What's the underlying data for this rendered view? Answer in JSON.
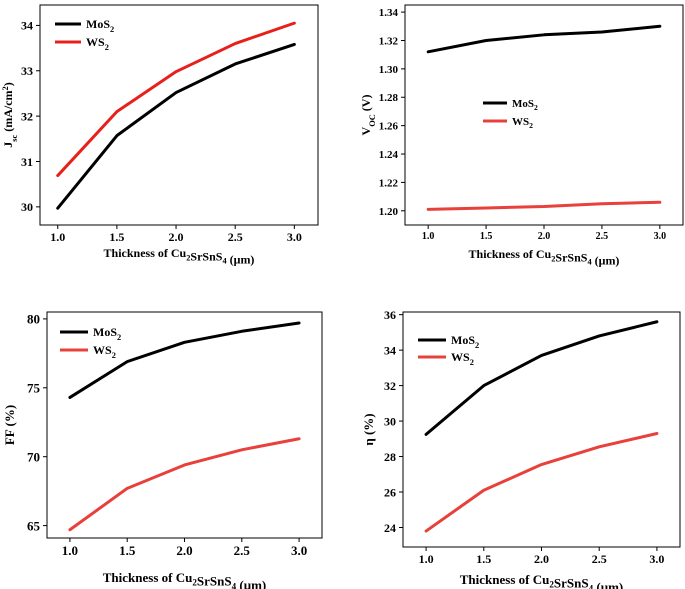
{
  "chart_data": [
    {
      "type": "line",
      "id": "jsc",
      "title": "",
      "x": [
        1.0,
        1.5,
        2.0,
        2.5,
        3.0
      ],
      "x_tick_labels": [
        "1.0",
        "1.5",
        "2.0",
        "2.5",
        "3.0"
      ],
      "xlim": [
        0.85,
        3.2
      ],
      "xlabel": "Thickness of Cu₂SrSnS₄ (μm)",
      "ylabel": "Jₛᴄ (mA/cm²)",
      "ylim": [
        29.6,
        34.45
      ],
      "yticks": [
        30,
        31,
        32,
        33,
        34
      ],
      "y_tick_labels": [
        "30",
        "31",
        "32",
        "33",
        "34"
      ],
      "series": [
        {
          "name": "MoS₂",
          "color": "#000000",
          "values": [
            29.97,
            31.57,
            32.52,
            33.15,
            33.58
          ]
        },
        {
          "name": "WS₂",
          "color": "#e8201b",
          "values": [
            30.69,
            32.1,
            32.98,
            33.6,
            34.05
          ]
        }
      ],
      "legend": "top-left",
      "grid": false
    },
    {
      "type": "line",
      "id": "voc",
      "title": "",
      "x": [
        1.0,
        1.5,
        2.0,
        2.5,
        3.0
      ],
      "x_tick_labels": [
        "1.0",
        "1.5",
        "2.0",
        "2.5",
        "3.0"
      ],
      "xlim": [
        0.8,
        3.2
      ],
      "xlabel": "Thickness of Cu₂SrSnS₄ (μm)",
      "ylabel": "Vₒᴄ (V)",
      "ylim": [
        1.19,
        1.345
      ],
      "yticks": [
        1.2,
        1.22,
        1.24,
        1.26,
        1.28,
        1.3,
        1.32,
        1.34
      ],
      "y_tick_labels": [
        "1.20",
        "1.22",
        "1.24",
        "1.26",
        "1.28",
        "1.30",
        "1.32",
        "1.34"
      ],
      "series": [
        {
          "name": "MoS₂",
          "color": "#000000",
          "values": [
            1.312,
            1.32,
            1.324,
            1.326,
            1.33
          ]
        },
        {
          "name": "WS₂",
          "color": "#e8403b",
          "values": [
            1.201,
            1.202,
            1.203,
            1.205,
            1.206
          ]
        }
      ],
      "legend": "center-left",
      "grid": false
    },
    {
      "type": "line",
      "id": "ff",
      "title": "",
      "x": [
        1.0,
        1.5,
        2.0,
        2.5,
        3.0
      ],
      "x_tick_labels": [
        "1.0",
        "1.5",
        "2.0",
        "2.5",
        "3.0"
      ],
      "xlim": [
        0.8,
        3.2
      ],
      "xlabel": "Thickness of Cu₂SrSnS₄ (μm)",
      "ylabel": "FF (%)",
      "ylim": [
        64.1,
        80.5
      ],
      "yticks": [
        65,
        70,
        75,
        80
      ],
      "y_tick_labels": [
        "65",
        "70",
        "75",
        "80"
      ],
      "series": [
        {
          "name": "MoS₂",
          "color": "#000000",
          "values": [
            74.3,
            76.9,
            78.3,
            79.1,
            79.7
          ]
        },
        {
          "name": "WS₂",
          "color": "#e8403b",
          "values": [
            64.7,
            67.7,
            69.4,
            70.5,
            71.3
          ]
        }
      ],
      "legend": "top-left",
      "grid": false
    },
    {
      "type": "line",
      "id": "eta",
      "title": "",
      "x": [
        1.0,
        1.5,
        2.0,
        2.5,
        3.0
      ],
      "x_tick_labels": [
        "1.0",
        "1.5",
        "2.0",
        "2.5",
        "3.0"
      ],
      "xlim": [
        0.8,
        3.2
      ],
      "xlabel": "Thickness of Cu₂SrSnS₄ (μm)",
      "ylabel": "η (%)",
      "ylim": [
        22.9,
        36.15
      ],
      "yticks": [
        24,
        26,
        28,
        30,
        32,
        34,
        36
      ],
      "y_tick_labels": [
        "24",
        "26",
        "28",
        "30",
        "32",
        "34",
        "36"
      ],
      "series": [
        {
          "name": "MoS₂",
          "color": "#000000",
          "values": [
            29.25,
            32.0,
            33.7,
            34.8,
            35.6
          ]
        },
        {
          "name": "WS₂",
          "color": "#e8403b",
          "values": [
            23.8,
            26.1,
            27.55,
            28.55,
            29.3
          ]
        }
      ],
      "legend": "top-left",
      "grid": false
    }
  ]
}
